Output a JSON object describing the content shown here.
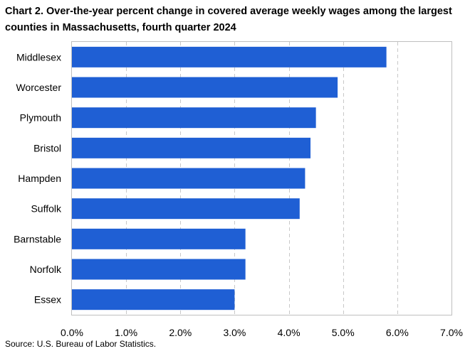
{
  "chart_data": {
    "type": "bar",
    "orientation": "horizontal",
    "title": "Chart 2. Over-the-year percent change in covered average weekly wages among the largest counties in Massachusetts, fourth quarter 2024",
    "categories": [
      "Middlesex",
      "Worcester",
      "Plymouth",
      "Bristol",
      "Hampden",
      "Suffolk",
      "Barnstable",
      "Norfolk",
      "Essex"
    ],
    "values": [
      5.8,
      4.9,
      4.5,
      4.4,
      4.3,
      4.2,
      3.2,
      3.2,
      3.0
    ],
    "xlim": [
      0,
      7
    ],
    "xticks": [
      0,
      1,
      2,
      3,
      4,
      5,
      6,
      7
    ],
    "xtick_labels": [
      "0.0%",
      "1.0%",
      "2.0%",
      "3.0%",
      "4.0%",
      "5.0%",
      "6.0%",
      "7.0%"
    ],
    "xlabel": "",
    "ylabel": "",
    "grid": "vertical dashed",
    "bar_color": "#1f5fd4",
    "source": "Source: U.S. Bureau of Labor Statistics."
  }
}
